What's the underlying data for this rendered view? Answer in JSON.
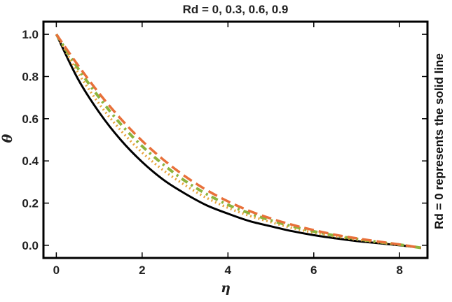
{
  "chart_data": {
    "type": "line",
    "title": "Rd = 0, 0.3, 0.6, 0.9",
    "xlabel": "η",
    "ylabel": "θ",
    "side_note": "Rd = 0 represents the solid line",
    "xlim": [
      -0.3,
      8.65
    ],
    "ylim": [
      -0.06,
      1.06
    ],
    "x_ticks": [
      0,
      2,
      4,
      6,
      8
    ],
    "y_ticks": [
      0.0,
      0.2,
      0.4,
      0.6,
      0.8,
      1.0
    ],
    "x_tick_labels": [
      "0",
      "2",
      "4",
      "6",
      "8"
    ],
    "y_tick_labels": [
      "0.0",
      "0.2",
      "0.4",
      "0.6",
      "0.8",
      "1.0"
    ],
    "grid": false,
    "series": [
      {
        "color": "#000000",
        "dash": "solid",
        "x": [
          0,
          0.5,
          1,
          1.5,
          2,
          2.5,
          3,
          3.5,
          4,
          4.5,
          5,
          5.5,
          6,
          6.5,
          7,
          7.5,
          8,
          8.5
        ],
        "y": [
          1.0,
          0.79,
          0.63,
          0.5,
          0.395,
          0.31,
          0.245,
          0.19,
          0.15,
          0.115,
          0.09,
          0.067,
          0.048,
          0.033,
          0.02,
          0.01,
          0.0,
          -0.012
        ]
      },
      {
        "color": "#E8A33B",
        "dash": "dotted",
        "x": [
          0,
          0.5,
          1,
          1.5,
          2,
          2.5,
          3,
          3.5,
          4,
          4.5,
          5,
          5.5,
          6,
          6.5,
          7,
          7.5,
          8,
          8.5
        ],
        "y": [
          1.0,
          0.82,
          0.67,
          0.545,
          0.44,
          0.355,
          0.285,
          0.225,
          0.178,
          0.14,
          0.11,
          0.082,
          0.06,
          0.042,
          0.027,
          0.014,
          0.002,
          -0.012
        ]
      },
      {
        "color": "#8DB33C",
        "dash": "dashdot",
        "x": [
          0,
          0.5,
          1,
          1.5,
          2,
          2.5,
          3,
          3.5,
          4,
          4.5,
          5,
          5.5,
          6,
          6.5,
          7,
          7.5,
          8,
          8.5
        ],
        "y": [
          1.0,
          0.84,
          0.7,
          0.575,
          0.47,
          0.382,
          0.305,
          0.243,
          0.192,
          0.152,
          0.118,
          0.09,
          0.066,
          0.046,
          0.03,
          0.016,
          0.003,
          -0.012
        ]
      },
      {
        "color": "#E8703A",
        "dash": "dashed",
        "x": [
          0,
          0.5,
          1,
          1.5,
          2,
          2.5,
          3,
          3.5,
          4,
          4.5,
          5,
          5.5,
          6,
          6.5,
          7,
          7.5,
          8,
          8.5
        ],
        "y": [
          1.0,
          0.855,
          0.72,
          0.6,
          0.495,
          0.405,
          0.327,
          0.262,
          0.208,
          0.163,
          0.127,
          0.097,
          0.072,
          0.05,
          0.033,
          0.018,
          0.004,
          -0.012
        ]
      }
    ]
  }
}
